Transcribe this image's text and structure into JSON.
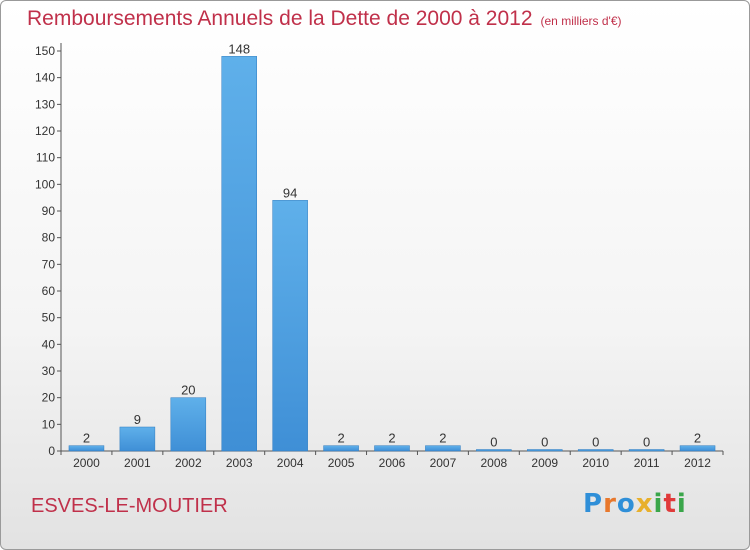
{
  "chart_data": {
    "type": "bar",
    "title": "Remboursements Annuels de la Dette de 2000 à 2012",
    "unit_note": "(en milliers d'€)",
    "categories": [
      "2000",
      "2001",
      "2002",
      "2003",
      "2004",
      "2005",
      "2006",
      "2007",
      "2008",
      "2009",
      "2010",
      "2011",
      "2012"
    ],
    "values": [
      2,
      9,
      20,
      148,
      94,
      2,
      2,
      2,
      0,
      0,
      0,
      0,
      2
    ],
    "data_labels": [
      "2",
      "9",
      "20",
      "148",
      "94",
      "2",
      "2",
      "2",
      "0",
      "0",
      "0",
      "0",
      "2"
    ],
    "yticks": [
      "0",
      "10",
      "20",
      "30",
      "40",
      "50",
      "60",
      "70",
      "80",
      "90",
      "100",
      "110",
      "120",
      "130",
      "140",
      "150"
    ],
    "ylim": [
      0,
      150
    ],
    "grid": false,
    "bar_color": "#3f8fd6",
    "bar_color_light": "#5fb0ea"
  },
  "commune": "ESVES-LE-MOUTIER",
  "logo": {
    "letters": [
      "P",
      "r",
      "o",
      "x",
      "i",
      "t",
      "i"
    ],
    "colors": [
      "#2f8fd8",
      "#e8782c",
      "#2f8fd8",
      "#e8b02c",
      "#3aa64a",
      "#e03a3a",
      "#3aa64a"
    ]
  }
}
